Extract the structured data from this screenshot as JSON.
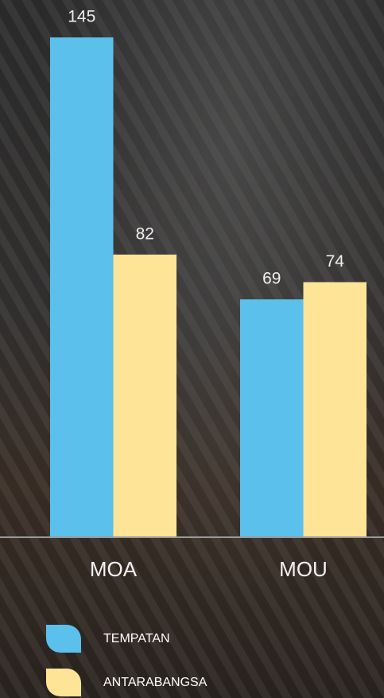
{
  "chart_data": {
    "type": "bar",
    "categories": [
      "MOA",
      "MOU"
    ],
    "series": [
      {
        "name": "TEMPATAN",
        "color": "#5bc0eb",
        "values": [
          145,
          69
        ]
      },
      {
        "name": "ANTARABANGSA",
        "color": "#fde496",
        "values": [
          82,
          74
        ]
      }
    ]
  }
}
